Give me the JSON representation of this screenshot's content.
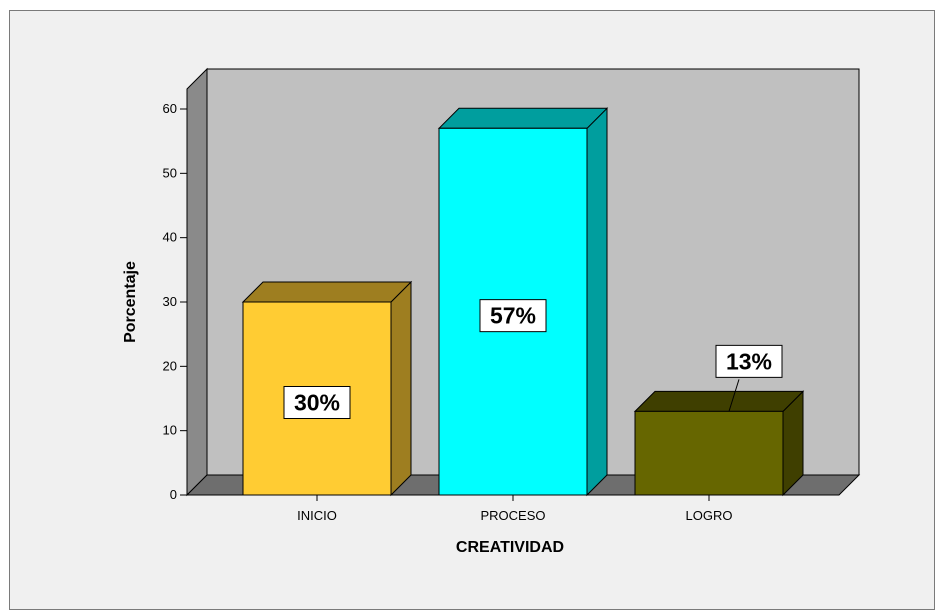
{
  "chart_data": {
    "type": "bar",
    "style": "3d",
    "categories": [
      "INICIO",
      "PROCESO",
      "LOGRO"
    ],
    "values": [
      30,
      57,
      13
    ],
    "data_labels": [
      "30%",
      "57%",
      "13%"
    ],
    "bar_colors": [
      "#ffcc33",
      "#00ffff",
      "#666600"
    ],
    "xlabel": "CREATIVIDAD",
    "ylabel": "Porcentaje",
    "ylim": [
      0,
      60
    ],
    "yticks": [
      "0",
      "10",
      "20",
      "30",
      "40",
      "50",
      "60"
    ],
    "grid": false,
    "legend": "none",
    "colors": {
      "plot_back_wall": "#c0c0c0",
      "plot_side_wall": "#8a8a8a",
      "plot_floor": "#6e6e6e",
      "frame_background": "#f0f0f0",
      "label_box": "#ffffff"
    }
  }
}
